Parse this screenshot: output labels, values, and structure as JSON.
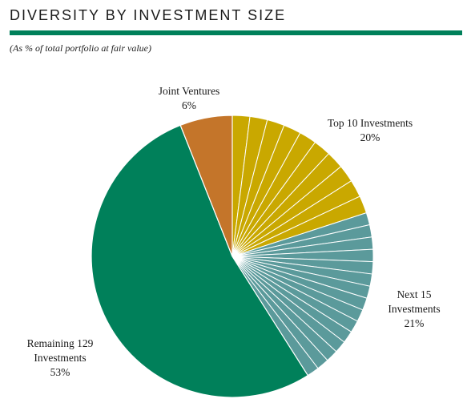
{
  "header": {
    "title": "DIVERSITY BY INVESTMENT SIZE",
    "subtitle": "(As % of total portfolio at fair value)"
  },
  "colors": {
    "rule": "#00805a",
    "slice_edge": "#ffffff"
  },
  "chart_data": {
    "type": "pie",
    "start": "12 o'clock, clockwise",
    "slices": [
      {
        "label_lines": [
          "Top 10 Investments",
          "20%"
        ],
        "value": 20,
        "color": "#c9a800",
        "segments": 10
      },
      {
        "label_lines": [
          "Next 15",
          "Investments",
          "21%"
        ],
        "value": 21,
        "color": "#5b9a9b",
        "segments": 15
      },
      {
        "label_lines": [
          "Remaining 129",
          "Investments",
          "53%"
        ],
        "value": 53,
        "color": "#00805a",
        "segments": 1
      },
      {
        "label_lines": [
          "Joint Ventures",
          "6%"
        ],
        "value": 6,
        "color": "#c4752a",
        "segments": 1
      }
    ]
  }
}
